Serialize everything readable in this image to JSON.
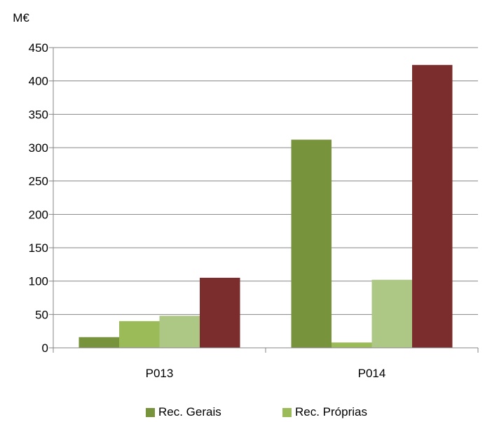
{
  "chart_data": {
    "type": "bar",
    "unit_label": "M€",
    "categories": [
      "P013",
      "P014"
    ],
    "ylim": [
      0,
      450
    ],
    "yticks": [
      0,
      50,
      100,
      150,
      200,
      250,
      300,
      350,
      400,
      450
    ],
    "grid": true,
    "legend_position": "bottom",
    "series": [
      {
        "name": "Rec. Gerais",
        "color": "#77933c",
        "values": [
          16,
          312
        ]
      },
      {
        "name": "Rec. Próprias",
        "color": "#9bbb59",
        "values": [
          40,
          8
        ]
      },
      {
        "name": "",
        "color": "#adc785",
        "values": [
          48,
          102
        ]
      },
      {
        "name": "",
        "color": "#7b2c2c",
        "values": [
          105,
          424
        ]
      }
    ]
  }
}
